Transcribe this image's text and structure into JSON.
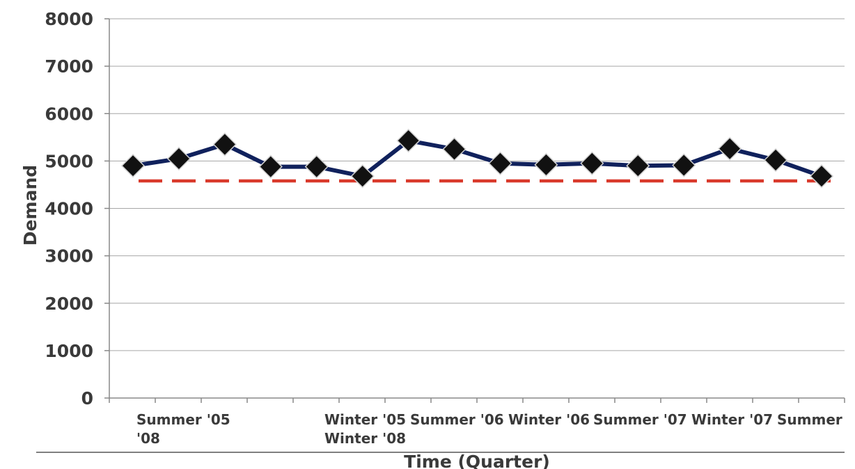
{
  "chart_data": {
    "type": "line",
    "title": "",
    "xlabel": "Time (Quarter)",
    "ylabel": "Demand",
    "ylim": [
      0,
      8000
    ],
    "y_ticks": [
      0,
      1000,
      2000,
      3000,
      4000,
      5000,
      6000,
      7000,
      8000
    ],
    "grid": "horizontal",
    "x_tick_labels": [
      "Summer '05",
      "Winter '05",
      "Summer '06",
      "Winter '06",
      "Summer '07",
      "Winter '07",
      "Summer"
    ],
    "x_tick_labels_row2": [
      "'08",
      "Winter '08"
    ],
    "series": [
      {
        "values": [
          4900,
          5050,
          5350,
          4880,
          4880,
          4680,
          5430,
          5250,
          4950,
          4920,
          4950,
          4900,
          4910,
          5260,
          5020,
          4680
        ],
        "color": "#10215c",
        "marker": "diamond",
        "marker_color": "#111111"
      }
    ],
    "reference_line": {
      "value": 4580,
      "style": "dashed",
      "color": "#d9392b"
    }
  }
}
